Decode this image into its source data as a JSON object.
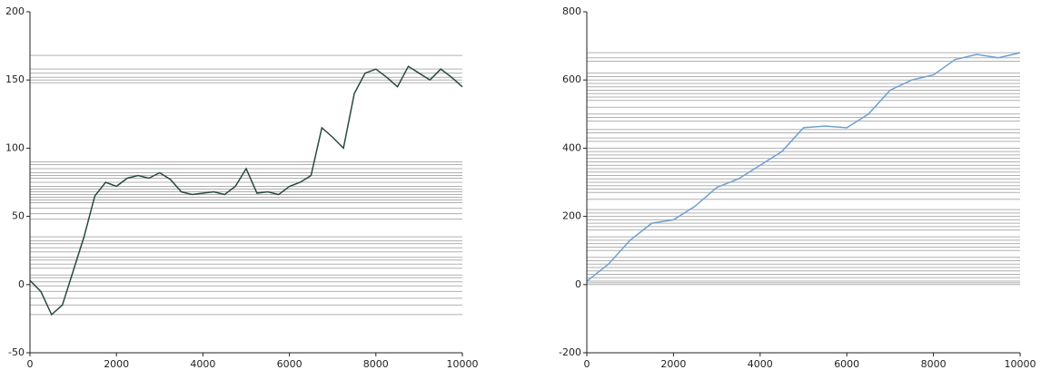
{
  "chart_data": [
    {
      "type": "line",
      "x": [
        0,
        250,
        500,
        750,
        1000,
        1250,
        1500,
        1750,
        2000,
        2250,
        2500,
        2750,
        3000,
        3250,
        3500,
        3750,
        4000,
        4250,
        4500,
        4750,
        5000,
        5250,
        5500,
        5750,
        6000,
        6250,
        6500,
        6750,
        7000,
        7250,
        7500,
        7750,
        8000,
        8250,
        8500,
        8750,
        9000,
        9250,
        9500,
        9750,
        10000
      ],
      "series": [
        {
          "color": "#2b4a3a",
          "values": [
            3,
            -5,
            -22,
            -15,
            10,
            35,
            65,
            75,
            72,
            78,
            80,
            78,
            82,
            77,
            68,
            66,
            67,
            68,
            66,
            72,
            85,
            67,
            68,
            66,
            72,
            75,
            80,
            115,
            108,
            100,
            140,
            155,
            158,
            152,
            145,
            160,
            155,
            150,
            158,
            152,
            145
          ]
        }
      ],
      "hlines": [
        168,
        158,
        155,
        152,
        150,
        148,
        90,
        88,
        85,
        82,
        80,
        78,
        75,
        72,
        70,
        68,
        66,
        64,
        62,
        60,
        56,
        52,
        48,
        35,
        32,
        30,
        27,
        24,
        20,
        18,
        15,
        12,
        7,
        5,
        2,
        -1,
        -5,
        -10,
        -15,
        -22
      ],
      "hline_color": "#b0b0b0",
      "xlim": [
        0,
        10000
      ],
      "xticks": [
        0,
        2000,
        4000,
        6000,
        8000,
        10000
      ],
      "ylim": [
        -50,
        200
      ],
      "yticks": [
        -50,
        0,
        50,
        100,
        150,
        200
      ]
    },
    {
      "type": "line",
      "x": [
        0,
        500,
        1000,
        1500,
        2000,
        2500,
        3000,
        3500,
        4000,
        4500,
        5000,
        5500,
        6000,
        6500,
        7000,
        7500,
        8000,
        8500,
        9000,
        9500,
        10000
      ],
      "series": [
        {
          "color": "#6f9fd0",
          "values": [
            10,
            60,
            130,
            180,
            190,
            230,
            285,
            310,
            350,
            390,
            460,
            465,
            460,
            500,
            570,
            600,
            615,
            660,
            675,
            665,
            680
          ]
        }
      ],
      "hlines": [
        680,
        665,
        655,
        620,
        610,
        600,
        590,
        580,
        570,
        560,
        550,
        540,
        520,
        500,
        490,
        480,
        455,
        445,
        430,
        420,
        400,
        390,
        380,
        370,
        360,
        350,
        340,
        330,
        320,
        310,
        300,
        290,
        280,
        270,
        250,
        220,
        210,
        200,
        190,
        180,
        170,
        160,
        140,
        130,
        120,
        110,
        100,
        80,
        70,
        60,
        50,
        40,
        30,
        20,
        10,
        5,
        0
      ],
      "hline_color": "#b0b0b0",
      "xlim": [
        0,
        10000
      ],
      "xticks": [
        0,
        2000,
        4000,
        6000,
        8000,
        10000
      ],
      "ylim": [
        -200,
        800
      ],
      "yticks": [
        -200,
        0,
        200,
        400,
        600,
        800
      ]
    }
  ]
}
